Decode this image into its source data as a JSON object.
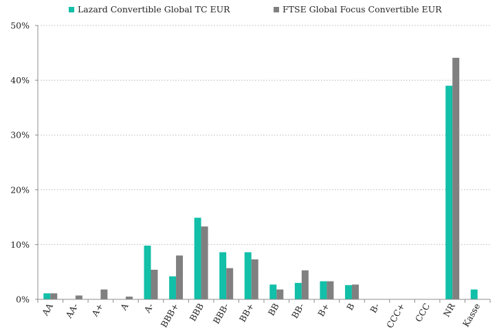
{
  "chart_data": {
    "type": "bar",
    "categories": [
      "AA",
      "AA-",
      "A+",
      "A",
      "A-",
      "BBB+",
      "BBB",
      "BBB-",
      "BB+",
      "BB",
      "BB-",
      "B+",
      "B",
      "B-",
      "CCC+",
      "CCC",
      "NR",
      "Kasse"
    ],
    "series": [
      {
        "name": "Lazard Convertible Global TC EUR",
        "color": "#12bfa8",
        "values": [
          1.1,
          0.0,
          0.0,
          0.0,
          9.8,
          4.2,
          14.9,
          8.6,
          8.6,
          2.7,
          3.0,
          3.3,
          2.6,
          0.0,
          0.0,
          0.0,
          39.0,
          1.8
        ]
      },
      {
        "name": "FTSE Global Focus Convertible EUR",
        "color": "#808080",
        "values": [
          1.1,
          0.7,
          1.8,
          0.5,
          5.4,
          8.0,
          13.3,
          5.7,
          7.3,
          1.8,
          5.3,
          3.3,
          2.7,
          0.0,
          0.0,
          0.0,
          44.1,
          0.0
        ]
      }
    ],
    "ylim": [
      0,
      50
    ],
    "yticks": [
      0,
      10,
      20,
      30,
      40,
      50
    ],
    "ytick_labels": [
      "0%",
      "10%",
      "20%",
      "30%",
      "40%",
      "50%"
    ],
    "grid": true,
    "legend_position": "top"
  }
}
